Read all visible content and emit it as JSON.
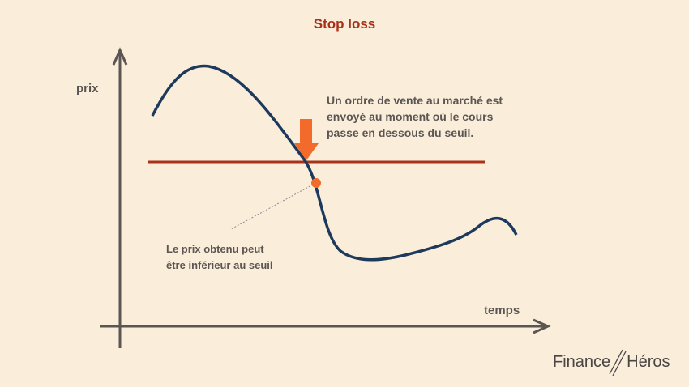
{
  "title": "Stop loss",
  "axes": {
    "y_label": "prix",
    "x_label": "temps"
  },
  "annotations": {
    "order": [
      "Un ordre de vente au marché est",
      "envoyé au moment où le cours",
      "passe en dessous du seuil."
    ],
    "price": [
      "Le prix obtenu peut",
      "être inférieur au seuil"
    ]
  },
  "logo": {
    "left": "Finance",
    "right": "Héros"
  },
  "colors": {
    "background": "#faedda",
    "title": "#a8321a",
    "curve": "#1d3a5c",
    "threshold": "#a8321a",
    "arrow": "#f26b2a",
    "axis": "#5b5653"
  }
}
